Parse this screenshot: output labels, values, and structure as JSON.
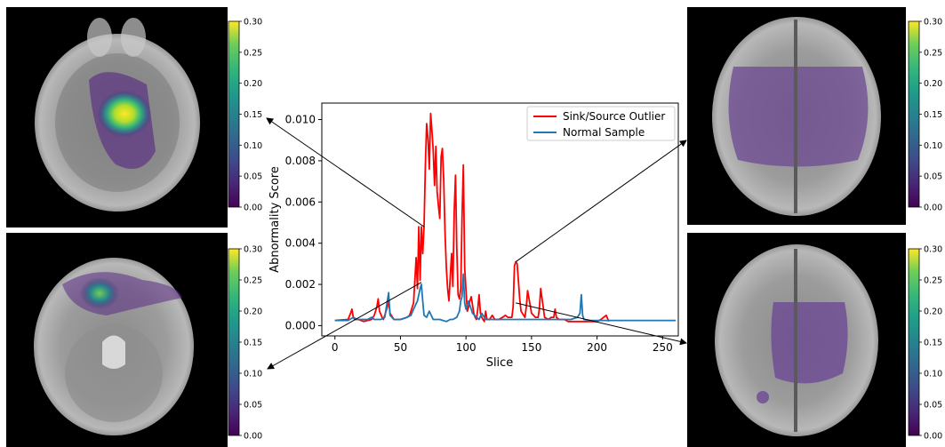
{
  "chart_data": {
    "type": "line",
    "xlabel": "Slice",
    "ylabel": "Abnormality Score",
    "xlim": [
      -10,
      262
    ],
    "ylim": [
      -0.0005,
      0.0108
    ],
    "xticks": [
      0,
      50,
      100,
      150,
      200,
      250
    ],
    "yticks": [
      0.0,
      0.002,
      0.004,
      0.006,
      0.008,
      0.01
    ],
    "ytick_labels": [
      "0.000",
      "0.002",
      "0.004",
      "0.006",
      "0.008",
      "0.010"
    ],
    "grid": false,
    "legend_position": "top-right",
    "series": [
      {
        "name": "Sink/Source Outlier",
        "color": "#ff0000",
        "x": [
          0,
          10,
          12,
          13,
          14,
          15,
          18,
          22,
          28,
          30,
          32,
          33,
          34,
          36,
          37,
          40,
          41,
          42,
          45,
          50,
          55,
          57,
          60,
          62,
          63,
          64,
          65,
          66,
          67,
          68,
          69,
          70,
          71,
          72,
          73,
          74,
          75,
          76,
          77,
          78,
          79,
          80,
          81,
          82,
          83,
          84,
          85,
          86,
          87,
          88,
          89,
          90,
          91,
          92,
          93,
          94,
          95,
          96,
          97,
          98,
          99,
          100,
          101,
          102,
          103,
          104,
          105,
          106,
          107,
          108,
          109,
          110,
          111,
          112,
          113,
          114,
          115,
          116,
          118,
          120,
          122,
          125,
          128,
          130,
          132,
          135,
          136,
          137,
          138,
          139,
          140,
          141,
          142,
          145,
          146,
          147,
          150,
          153,
          155,
          156,
          157,
          160,
          163,
          165,
          167,
          168,
          169,
          171,
          175,
          178,
          180,
          183,
          185,
          188,
          190,
          192,
          195,
          200,
          203,
          205,
          207,
          209
        ],
        "y": [
          0.00025,
          0.0003,
          0.0006,
          0.0008,
          0.0004,
          0.0003,
          0.0003,
          0.0002,
          0.0003,
          0.0005,
          0.0009,
          0.0013,
          0.0007,
          0.0004,
          0.0003,
          0.0009,
          0.0012,
          0.0006,
          0.0003,
          0.0003,
          0.0004,
          0.0005,
          0.0011,
          0.0033,
          0.0018,
          0.0048,
          0.0022,
          0.0048,
          0.0035,
          0.0048,
          0.0078,
          0.0098,
          0.0091,
          0.0076,
          0.0103,
          0.0095,
          0.0085,
          0.0068,
          0.0087,
          0.0065,
          0.0058,
          0.0052,
          0.0082,
          0.0086,
          0.0071,
          0.0045,
          0.0028,
          0.0018,
          0.0012,
          0.0024,
          0.0035,
          0.0019,
          0.0055,
          0.0073,
          0.0038,
          0.0015,
          0.0013,
          0.0018,
          0.0052,
          0.0078,
          0.0028,
          0.0017,
          0.0007,
          0.0009,
          0.0012,
          0.0014,
          0.001,
          0.0006,
          0.0004,
          0.0003,
          0.0008,
          0.0015,
          0.0006,
          0.0004,
          0.0003,
          0.0002,
          0.0007,
          0.0003,
          0.0003,
          0.0005,
          0.0003,
          0.0003,
          0.0004,
          0.0005,
          0.0004,
          0.0004,
          0.0009,
          0.0029,
          0.0031,
          0.003,
          0.0022,
          0.0013,
          0.0007,
          0.0004,
          0.0009,
          0.0017,
          0.0006,
          0.0004,
          0.0004,
          0.0008,
          0.0018,
          0.0004,
          0.0003,
          0.0004,
          0.0004,
          0.0008,
          0.0004,
          0.0003,
          0.0003,
          0.0002,
          0.0002,
          0.0002,
          0.0002,
          0.0002,
          0.0002,
          0.0002,
          0.0002,
          0.0002,
          0.0003,
          0.0004,
          0.0005,
          0.0002
        ]
      },
      {
        "name": "Normal Sample",
        "color": "#1f77b4",
        "x": [
          0,
          10,
          14,
          17,
          20,
          25,
          28,
          30,
          35,
          38,
          40,
          41,
          42,
          45,
          48,
          50,
          55,
          58,
          60,
          63,
          65,
          66,
          67,
          68,
          70,
          72,
          75,
          80,
          85,
          88,
          90,
          93,
          95,
          96,
          97,
          98,
          99,
          100,
          102,
          105,
          108,
          110,
          112,
          115,
          118,
          120,
          125,
          128,
          130,
          135,
          140,
          143,
          145,
          150,
          155,
          160,
          165,
          170,
          175,
          180,
          185,
          187,
          188,
          189,
          190,
          195,
          200,
          210,
          220,
          230,
          240,
          250,
          260
        ],
        "y": [
          0.00025,
          0.00025,
          0.0004,
          0.0003,
          0.0003,
          0.0003,
          0.0004,
          0.0003,
          0.0003,
          0.0004,
          0.0012,
          0.0016,
          0.0005,
          0.0003,
          0.0003,
          0.0003,
          0.0004,
          0.0005,
          0.0008,
          0.0012,
          0.0018,
          0.002,
          0.0012,
          0.0005,
          0.0004,
          0.0007,
          0.0003,
          0.0003,
          0.0002,
          0.0003,
          0.0003,
          0.0004,
          0.0007,
          0.0012,
          0.0014,
          0.0025,
          0.0011,
          0.0008,
          0.0012,
          0.0006,
          0.0004,
          0.0003,
          0.0006,
          0.0003,
          0.0003,
          0.0003,
          0.0003,
          0.0003,
          0.0003,
          0.0003,
          0.0003,
          0.0003,
          0.0003,
          0.0003,
          0.0003,
          0.0003,
          0.0003,
          0.0003,
          0.0003,
          0.0003,
          0.0004,
          0.0006,
          0.0015,
          0.0005,
          0.0003,
          0.00025,
          0.00025,
          0.00025,
          0.00025,
          0.00025,
          0.00025,
          0.00025,
          0.00025
        ]
      }
    ],
    "colorbar": {
      "range": [
        0.0,
        0.3
      ],
      "tick_labels": [
        "0.00",
        "0.05",
        "0.10",
        "0.15",
        "0.20",
        "0.25",
        "0.30"
      ],
      "colormap": "viridis"
    },
    "callouts": [
      {
        "panel": "top-left",
        "data_x": 68,
        "data_y": 0.0048
      },
      {
        "panel": "bottom-left",
        "data_x": 66,
        "data_y": 0.0021
      },
      {
        "panel": "top-right",
        "data_x": 138,
        "data_y": 0.0031
      },
      {
        "panel": "bottom-right",
        "data_x": 138,
        "data_y": 0.0011
      }
    ]
  }
}
